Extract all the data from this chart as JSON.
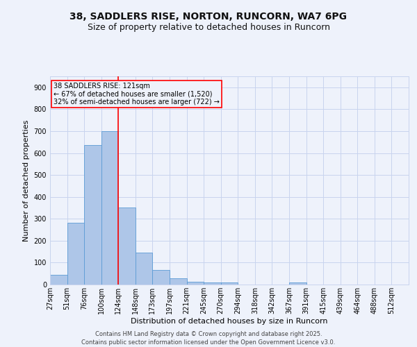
{
  "title_line1": "38, SADDLERS RISE, NORTON, RUNCORN, WA7 6PG",
  "title_line2": "Size of property relative to detached houses in Runcorn",
  "xlabel": "Distribution of detached houses by size in Runcorn",
  "ylabel": "Number of detached properties",
  "footer_line1": "Contains HM Land Registry data © Crown copyright and database right 2025.",
  "footer_line2": "Contains public sector information licensed under the Open Government Licence v3.0.",
  "categories": [
    "27sqm",
    "51sqm",
    "76sqm",
    "100sqm",
    "124sqm",
    "148sqm",
    "173sqm",
    "197sqm",
    "221sqm",
    "245sqm",
    "270sqm",
    "294sqm",
    "318sqm",
    "342sqm",
    "367sqm",
    "391sqm",
    "415sqm",
    "439sqm",
    "464sqm",
    "488sqm",
    "512sqm"
  ],
  "values": [
    45,
    282,
    635,
    700,
    350,
    145,
    65,
    30,
    14,
    10,
    8,
    0,
    0,
    0,
    8,
    0,
    0,
    0,
    0,
    0,
    0
  ],
  "bar_color": "#aec6e8",
  "bar_edge_color": "#5b9bd5",
  "bar_width": 1.0,
  "property_line_x": 4,
  "annotation_text_line1": "38 SADDLERS RISE: 121sqm",
  "annotation_text_line2": "← 67% of detached houses are smaller (1,520)",
  "annotation_text_line3": "32% of semi-detached houses are larger (722) →",
  "annotation_box_color": "red",
  "property_line_color": "red",
  "ylim": [
    0,
    950
  ],
  "yticks": [
    0,
    100,
    200,
    300,
    400,
    500,
    600,
    700,
    800,
    900
  ],
  "bg_color": "#eef2fb",
  "grid_color": "#c8d4ee",
  "title_fontsize": 10,
  "subtitle_fontsize": 9,
  "axis_label_fontsize": 8,
  "tick_fontsize": 7,
  "footer_fontsize": 6,
  "annot_fontsize": 7
}
